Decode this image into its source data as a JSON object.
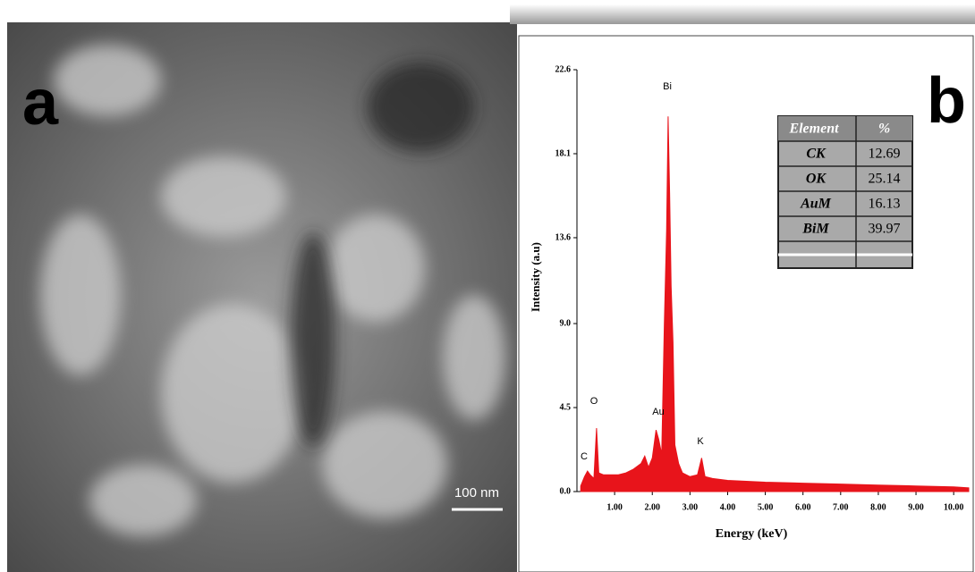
{
  "panel_a": {
    "label": "a",
    "scale_bar": "100 nm"
  },
  "panel_b": {
    "label": "b"
  },
  "chart_data": {
    "type": "area",
    "xlabel": "Energy (keV)",
    "ylabel": "Intensity (a.u)",
    "color": "#e8141b",
    "annotations": [
      "C",
      "O",
      "Au",
      "Bi",
      "K"
    ],
    "x": [
      0.1,
      0.2,
      0.28,
      0.35,
      0.45,
      0.52,
      0.58,
      0.7,
      0.9,
      1.1,
      1.3,
      1.5,
      1.7,
      1.8,
      1.9,
      2.0,
      2.1,
      2.17,
      2.25,
      2.32,
      2.38,
      2.42,
      2.46,
      2.5,
      2.55,
      2.6,
      2.7,
      2.8,
      3.0,
      3.2,
      3.31,
      3.4,
      3.6,
      4.0,
      5.0,
      6.0,
      7.0,
      8.0,
      9.0,
      10.0,
      10.4
    ],
    "values": [
      0.3,
      0.8,
      1.1,
      0.9,
      0.7,
      3.4,
      1.0,
      0.9,
      0.9,
      0.9,
      1.0,
      1.2,
      1.5,
      1.9,
      1.3,
      1.8,
      3.3,
      2.8,
      2.0,
      9,
      14,
      20.1,
      16,
      11,
      8,
      2.5,
      1.5,
      1.0,
      0.8,
      0.9,
      1.8,
      0.8,
      0.7,
      0.6,
      0.5,
      0.45,
      0.4,
      0.35,
      0.3,
      0.25,
      0.2
    ],
    "xlim": [
      0,
      10.4
    ],
    "ylim": [
      0,
      22.6
    ],
    "xticks": [
      {
        "value": 1,
        "label": "1.00"
      },
      {
        "value": 2,
        "label": "2.00"
      },
      {
        "value": 3,
        "label": "3.00"
      },
      {
        "value": 4,
        "label": "4.00"
      },
      {
        "value": 5,
        "label": "5.00"
      },
      {
        "value": 6,
        "label": "6.00"
      },
      {
        "value": 7,
        "label": "7.00"
      },
      {
        "value": 8,
        "label": "8.00"
      },
      {
        "value": 9,
        "label": "9.00"
      },
      {
        "value": 10,
        "label": "10.00"
      }
    ],
    "yticks": [
      {
        "value": 0,
        "label": "0.0"
      },
      4.5,
      {
        "value": 9,
        "label": "9.0"
      },
      13.6,
      18.1,
      22.6
    ]
  },
  "table": {
    "header": [
      "Element",
      "%"
    ],
    "rows": [
      [
        "CK",
        12.69
      ],
      [
        "OK",
        25.14
      ],
      [
        "AuM",
        16.13
      ],
      [
        "BiM",
        39.97
      ]
    ]
  }
}
